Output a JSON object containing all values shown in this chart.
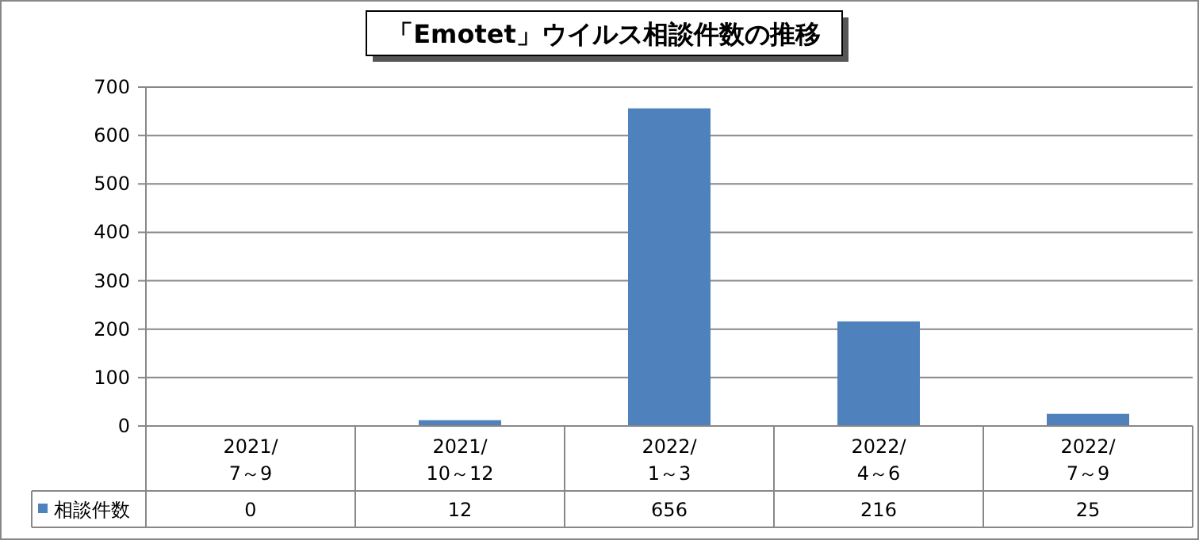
{
  "chart_data": {
    "type": "bar",
    "title": "「Emotet」ウイルス相談件数の推移",
    "categories": [
      "2021/\n7～9",
      "2021/\n10～12",
      "2022/\n1～3",
      "2022/\n4～6",
      "2022/\n7～9"
    ],
    "series": [
      {
        "name": "相談件数",
        "color": "#4f81bd",
        "values": [
          0,
          12,
          656,
          216,
          25
        ]
      }
    ],
    "ylim": [
      0,
      700
    ],
    "yticks": [
      0,
      100,
      200,
      300,
      400,
      500,
      600,
      700
    ],
    "grid": "y",
    "data_labels": true,
    "legend": "bottom"
  }
}
